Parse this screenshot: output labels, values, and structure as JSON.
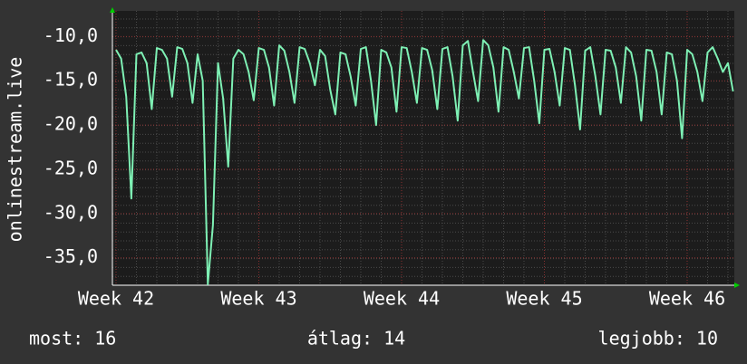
{
  "chart_data": {
    "type": "line",
    "y_label": "onlinestream.live",
    "categories": [
      "Week 42",
      null,
      null,
      null,
      null,
      null,
      null,
      null,
      null,
      null,
      null,
      null,
      null,
      null,
      null,
      null,
      null,
      null,
      null,
      null,
      null,
      null,
      null,
      null,
      null,
      null,
      null,
      null,
      "Week 43",
      null,
      null,
      null,
      null,
      null,
      null,
      null,
      null,
      null,
      null,
      null,
      null,
      null,
      null,
      null,
      null,
      null,
      null,
      null,
      null,
      null,
      null,
      null,
      null,
      null,
      null,
      null,
      "Week 44",
      null,
      null,
      null,
      null,
      null,
      null,
      null,
      null,
      null,
      null,
      null,
      null,
      null,
      null,
      null,
      null,
      null,
      null,
      null,
      null,
      null,
      null,
      null,
      null,
      null,
      null,
      null,
      "Week 45",
      null,
      null,
      null,
      null,
      null,
      null,
      null,
      null,
      null,
      null,
      null,
      null,
      null,
      null,
      null,
      null,
      null,
      null,
      null,
      null,
      null,
      null,
      null,
      null,
      null,
      null,
      null,
      "Week 46",
      null,
      null,
      null,
      null,
      null,
      null,
      null,
      null,
      null
    ],
    "series": [
      {
        "color": "#7ef0b4",
        "values": [
          -11.5,
          -12.5,
          -16.8,
          -28.3,
          -12,
          -11.8,
          -13,
          -18.2,
          -11.3,
          -11.5,
          -12.5,
          -16.8,
          -11.2,
          -11.4,
          -13,
          -17.5,
          -12,
          -15,
          -38,
          -31.3,
          -13,
          -17,
          -24.7,
          -12.5,
          -11.5,
          -12,
          -14,
          -17.2,
          -11.3,
          -11.5,
          -13.5,
          -17.8,
          -11,
          -11.6,
          -14,
          -17.5,
          -11.2,
          -11.4,
          -13,
          -15.5,
          -11.5,
          -12.2,
          -16,
          -18.8,
          -11.8,
          -12,
          -14.5,
          -17.8,
          -11.4,
          -11.2,
          -15,
          -20,
          -11.5,
          -11.8,
          -13.5,
          -18.5,
          -11.2,
          -11.3,
          -14,
          -17.5,
          -11.3,
          -11.5,
          -13.8,
          -18.2,
          -11.4,
          -11.2,
          -14.5,
          -19.5,
          -11,
          -10.5,
          -14,
          -17.3,
          -10.4,
          -11,
          -13.5,
          -18.5,
          -11.2,
          -11.5,
          -14,
          -17,
          -11.3,
          -11.2,
          -15,
          -19.8,
          -11.5,
          -11.4,
          -14,
          -17.8,
          -11.3,
          -11.5,
          -15.5,
          -20.5,
          -11.6,
          -11.2,
          -14.5,
          -18.8,
          -11.5,
          -11.6,
          -13.5,
          -17.5,
          -11.2,
          -11.8,
          -14.5,
          -19.5,
          -11.5,
          -11.6,
          -14,
          -18.8,
          -11.8,
          -12,
          -15,
          -21.5,
          -11.5,
          -12,
          -14,
          -17.3,
          -11.8,
          -11.2,
          -12.5,
          -14,
          -13,
          -16.2
        ]
      }
    ],
    "ylim": [
      -38.1,
      -7.1
    ],
    "yticks": [
      {
        "value": -10,
        "label": "-10,0"
      },
      {
        "value": -15,
        "label": "-15,0"
      },
      {
        "value": -20,
        "label": "-20,0"
      },
      {
        "value": -25,
        "label": "-25,0"
      },
      {
        "value": -30,
        "label": "-30,0"
      },
      {
        "value": -35,
        "label": "-35,0"
      }
    ],
    "grid": true,
    "legend": [
      "most: 16",
      "átlag: 14",
      "legjobb: 10"
    ]
  }
}
